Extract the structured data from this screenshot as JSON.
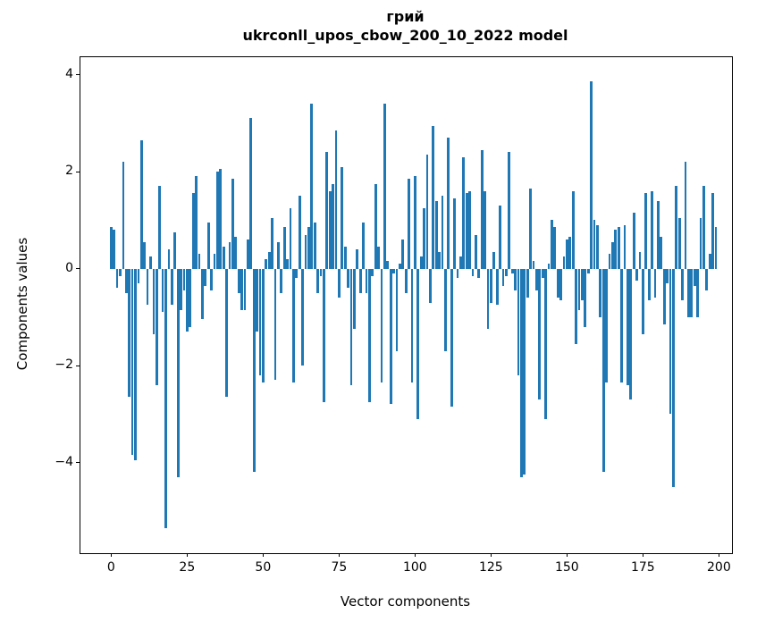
{
  "figure": {
    "title_line1": "грий",
    "title_line2": "ukrconll_upos_cbow_200_10_2022 model",
    "xlabel": "Vector components",
    "ylabel": "Components values"
  },
  "chart_data": {
    "type": "bar",
    "title": "грий",
    "subtitle": "ukrconll_upos_cbow_200_10_2022 model",
    "xlabel": "Vector components",
    "ylabel": "Components values",
    "bar_color": "#1f77b4",
    "axis_color": "#000000",
    "background": "#ffffff",
    "grid": false,
    "legend_position": "none",
    "n_bars": 200,
    "x_description": "bar index 0..199 (vector component number)",
    "xlim": [
      -10.1,
      204.3
    ],
    "ylim": [
      -5.87,
      4.36
    ],
    "x_tick_values": [
      0,
      25,
      50,
      75,
      100,
      125,
      150,
      175,
      200
    ],
    "x_tick_labels": [
      "0",
      "25",
      "50",
      "75",
      "100",
      "125",
      "150",
      "175",
      "200"
    ],
    "y_tick_values": [
      -4,
      -2,
      0,
      2,
      4
    ],
    "y_tick_labels": [
      "−4",
      "−2",
      "0",
      "2",
      "4"
    ],
    "bar_width_data_units": 0.8,
    "values": [
      0.85,
      0.8,
      -0.4,
      -0.15,
      2.2,
      -0.5,
      -2.65,
      -3.85,
      -3.95,
      -0.3,
      2.65,
      0.55,
      -0.75,
      0.25,
      -1.35,
      -2.4,
      1.7,
      -0.9,
      -5.35,
      0.4,
      -0.75,
      0.75,
      -4.3,
      -0.85,
      -0.45,
      -1.3,
      -1.2,
      1.55,
      1.9,
      0.3,
      -1.05,
      -0.35,
      0.95,
      -0.45,
      0.3,
      2.0,
      2.05,
      0.45,
      -2.65,
      0.55,
      1.85,
      0.65,
      -0.5,
      -0.85,
      -0.85,
      0.6,
      3.1,
      -4.2,
      -1.3,
      -2.2,
      -2.35,
      0.2,
      0.35,
      1.05,
      -2.3,
      0.55,
      -0.5,
      0.85,
      0.2,
      1.25,
      -2.35,
      -0.2,
      1.5,
      -2.0,
      0.7,
      0.85,
      3.4,
      0.95,
      -0.5,
      -0.15,
      -2.75,
      2.4,
      1.6,
      1.75,
      2.85,
      -0.6,
      2.1,
      0.45,
      -0.4,
      -2.4,
      -1.25,
      0.4,
      -0.5,
      0.95,
      -0.5,
      -2.75,
      -0.15,
      1.75,
      0.45,
      -2.35,
      3.4,
      0.15,
      -2.8,
      -0.1,
      -1.7,
      0.1,
      0.6,
      -0.5,
      1.85,
      -2.35,
      1.9,
      -3.1,
      0.25,
      1.25,
      2.35,
      -0.7,
      2.95,
      1.4,
      0.35,
      1.5,
      -1.7,
      2.7,
      -2.85,
      1.45,
      -0.2,
      0.25,
      2.3,
      1.55,
      1.6,
      -0.15,
      0.7,
      -0.2,
      2.45,
      1.6,
      -1.25,
      -0.7,
      0.35,
      -0.75,
      1.3,
      -0.35,
      -0.15,
      2.4,
      -0.1,
      -0.45,
      -2.2,
      -4.3,
      -4.25,
      -0.6,
      1.65,
      0.15,
      -0.45,
      -2.7,
      -0.2,
      -3.1,
      0.1,
      1.0,
      0.85,
      -0.6,
      -0.65,
      0.25,
      0.6,
      0.65,
      1.6,
      -1.55,
      -0.85,
      -0.65,
      -1.2,
      -0.1,
      3.87,
      1.0,
      0.9,
      -1.0,
      -4.2,
      -2.35,
      0.3,
      0.55,
      0.8,
      0.85,
      -2.35,
      0.9,
      -2.4,
      -2.7,
      1.15,
      -0.25,
      0.35,
      -1.35,
      1.55,
      -0.65,
      1.6,
      -0.6,
      1.4,
      0.65,
      -1.15,
      -0.3,
      -3.0,
      -4.5,
      1.7,
      1.05,
      -0.65,
      2.2,
      -1.0,
      -1.0,
      -0.35,
      -1.0,
      1.05,
      1.7,
      -0.45,
      0.3,
      1.55,
      0.85
    ]
  }
}
